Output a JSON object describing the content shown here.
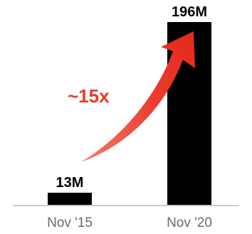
{
  "chart_data": {
    "type": "bar",
    "categories": [
      "Nov '15",
      "Nov '20"
    ],
    "values": [
      13,
      196
    ],
    "value_labels": [
      "13M",
      "196M"
    ],
    "ylim": [
      0,
      196
    ],
    "grid": false,
    "legend": "none",
    "annotation": {
      "text": "~15x",
      "color": "#e8392a"
    },
    "bar_color": "#000000",
    "axis_color": "#cccccc"
  }
}
